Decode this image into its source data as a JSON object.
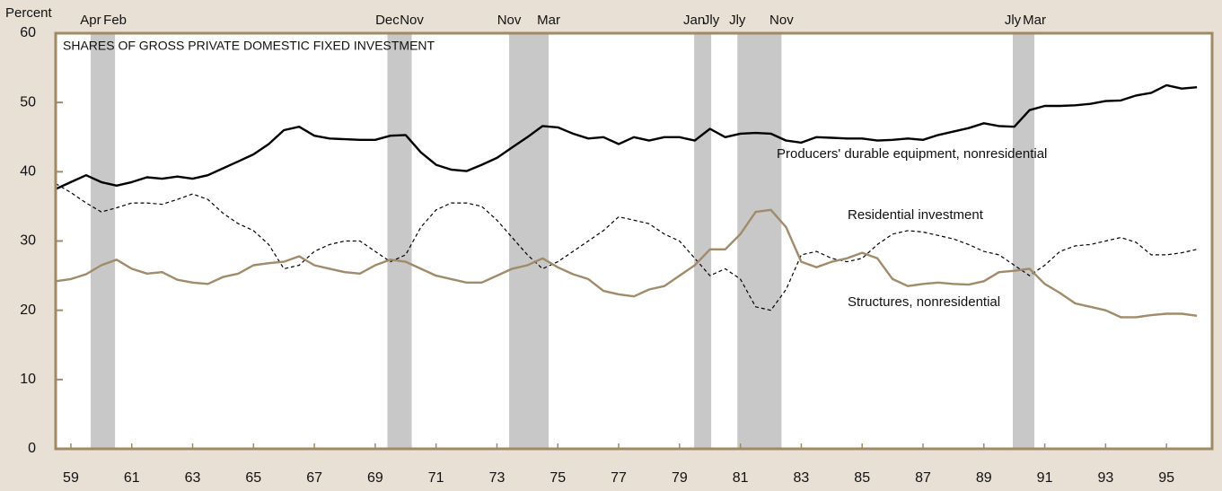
{
  "chart_data": {
    "type": "line",
    "title": "SHARES OF GROSS PRIVATE DOMESTIC FIXED INVESTMENT",
    "y_axis_label": "Percent",
    "x": [
      1959,
      1959.5,
      1960,
      1960.5,
      1961,
      1961.5,
      1962,
      1962.5,
      1963,
      1963.5,
      1964,
      1964.5,
      1965,
      1965.5,
      1966,
      1966.5,
      1967,
      1967.5,
      1968,
      1968.5,
      1969,
      1969.5,
      1970,
      1970.5,
      1971,
      1971.5,
      1972,
      1972.5,
      1973,
      1973.5,
      1974,
      1974.5,
      1975,
      1975.5,
      1976,
      1976.5,
      1977,
      1977.5,
      1978,
      1978.5,
      1979,
      1979.5,
      1980,
      1980.5,
      1981,
      1981.5,
      1982,
      1982.5,
      1983,
      1983.5,
      1984,
      1984.5,
      1985,
      1985.5,
      1986,
      1986.5,
      1987,
      1987.5,
      1988,
      1988.5,
      1989,
      1989.5,
      1990,
      1990.5,
      1991,
      1991.5,
      1992,
      1992.5,
      1993,
      1993.5,
      1994,
      1994.5,
      1995,
      1995.5,
      1996,
      1996.5
    ],
    "series": [
      {
        "name": "Producers' durable equipment, nonresidential",
        "color": "#000000",
        "dash": false,
        "values": [
          37.5,
          38.5,
          39.5,
          38.5,
          38,
          38.5,
          39.2,
          39,
          39.3,
          39,
          39.5,
          40.5,
          41.5,
          42.5,
          44,
          46,
          46.5,
          45.2,
          44.8,
          44.7,
          44.6,
          44.6,
          45.2,
          45.3,
          42.8,
          41,
          40.3,
          40.1,
          41,
          42,
          43.5,
          45,
          46.6,
          46.4,
          45.5,
          44.8,
          45,
          44,
          45,
          44.5,
          45,
          45,
          44.5,
          46.2,
          45,
          45.5,
          45.6,
          45.5,
          44.5,
          44.2,
          45,
          44.9,
          44.8,
          44.8,
          44.5,
          44.6,
          44.8,
          44.6,
          45.3,
          45.8,
          46.3,
          47,
          46.6,
          46.5,
          48.9,
          49.5,
          49.5,
          49.6,
          49.8,
          50.2,
          50.3,
          51,
          51.4,
          52.5,
          52,
          52.2
        ]
      },
      {
        "name": "Residential investment",
        "color": "#000000",
        "dash": true,
        "values": [
          38.3,
          37,
          35.5,
          34.2,
          34.8,
          35.5,
          35.5,
          35.3,
          36,
          36.8,
          36,
          34,
          32.5,
          31.5,
          29.5,
          26,
          26.5,
          28.5,
          29.5,
          30,
          30,
          28.5,
          27,
          28,
          32,
          34.5,
          35.5,
          35.5,
          35,
          33,
          30.5,
          28,
          26,
          27,
          28.5,
          30,
          31.5,
          33.5,
          33,
          32.5,
          31,
          30,
          27.5,
          25,
          26,
          24.5,
          20.5,
          20,
          23,
          28,
          28.5,
          27.5,
          27,
          27.5,
          29.5,
          31,
          31.5,
          31.3,
          30.8,
          30.3,
          29.5,
          28.5,
          28,
          26.5,
          25,
          26.5,
          28.5,
          29.3,
          29.5,
          30,
          30.5,
          29.8,
          28,
          28,
          28.3,
          28.8
        ]
      },
      {
        "name": "Structures, nonresidential",
        "color": "#a08b6b",
        "dash": false,
        "values": [
          24.2,
          24.5,
          25.2,
          26.5,
          27.3,
          26,
          25.3,
          25.5,
          24.4,
          24,
          23.8,
          24.8,
          25.3,
          26.5,
          26.8,
          27,
          27.8,
          26.5,
          26,
          25.5,
          25.3,
          26.5,
          27.3,
          27,
          26,
          25,
          24.5,
          24,
          24,
          25,
          26,
          26.5,
          27.5,
          26.2,
          25.2,
          24.5,
          22.8,
          22.3,
          22,
          23,
          23.5,
          25,
          26.5,
          28.8,
          28.8,
          31,
          34.2,
          34.5,
          32,
          27,
          26.2,
          27,
          27.5,
          28.3,
          27.5,
          24.5,
          23.5,
          23.8,
          24,
          23.8,
          23.7,
          24.2,
          25.5,
          25.7,
          26,
          23.8,
          22.5,
          21,
          20.5,
          20,
          19,
          19,
          19.3,
          19.5,
          19.5,
          19.2
        ]
      }
    ],
    "recessions": [
      {
        "start": 1960.15,
        "end": 1960.95,
        "start_label": "Apr",
        "end_label": "Feb"
      },
      {
        "start": 1969.9,
        "end": 1970.7,
        "start_label": "Dec",
        "end_label": "Nov"
      },
      {
        "start": 1973.9,
        "end": 1975.2,
        "start_label": "Nov",
        "end_label": "Mar"
      },
      {
        "start": 1979.98,
        "end": 1980.54,
        "start_label": "Jan",
        "end_label": "Jly"
      },
      {
        "start": 1981.4,
        "end": 1982.85,
        "start_label": "Jly",
        "end_label": "Nov"
      },
      {
        "start": 1990.45,
        "end": 1991.16,
        "start_label": "Jly",
        "end_label": "Mar"
      }
    ],
    "recession_color": "#c8c8c8",
    "xlim": [
      1959,
      1997
    ],
    "xticks": [
      {
        "value": 1959.5,
        "label": "59"
      },
      {
        "value": 1961.5,
        "label": "61"
      },
      {
        "value": 1963.5,
        "label": "63"
      },
      {
        "value": 1965.5,
        "label": "65"
      },
      {
        "value": 1967.5,
        "label": "67"
      },
      {
        "value": 1969.5,
        "label": "69"
      },
      {
        "value": 1971.5,
        "label": "71"
      },
      {
        "value": 1973.5,
        "label": "73"
      },
      {
        "value": 1975.5,
        "label": "75"
      },
      {
        "value": 1977.5,
        "label": "77"
      },
      {
        "value": 1979.5,
        "label": "79"
      },
      {
        "value": 1981.5,
        "label": "81"
      },
      {
        "value": 1983.5,
        "label": "83"
      },
      {
        "value": 1985.5,
        "label": "85"
      },
      {
        "value": 1987.5,
        "label": "87"
      },
      {
        "value": 1989.5,
        "label": "89"
      },
      {
        "value": 1991.5,
        "label": "91"
      },
      {
        "value": 1993.5,
        "label": "93"
      },
      {
        "value": 1995.5,
        "label": "95"
      }
    ],
    "ylim": [
      0,
      60
    ],
    "yticks": [
      0,
      10,
      20,
      30,
      40,
      50,
      60
    ]
  }
}
